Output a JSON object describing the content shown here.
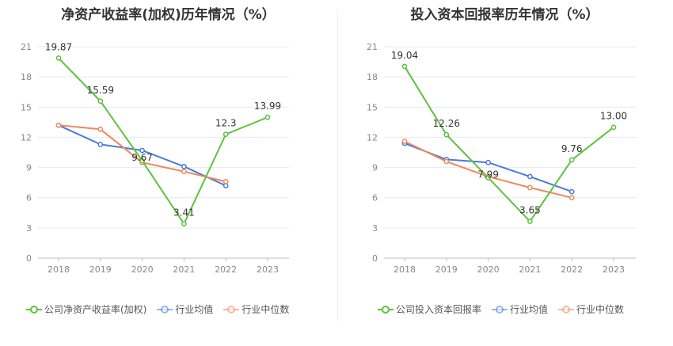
{
  "chart_data": [
    {
      "type": "line",
      "title": "净资产收益率(加权)历年情况（%）",
      "categories": [
        "2018",
        "2019",
        "2020",
        "2021",
        "2022",
        "2023"
      ],
      "yticks": [
        "0",
        "3",
        "6",
        "9",
        "12",
        "15",
        "18",
        "21"
      ],
      "ylim": [
        0,
        21
      ],
      "grid": true,
      "legend_position": "bottom-left",
      "series": [
        {
          "name": "公司净资产收益率(加权)",
          "color": "#5cc33c",
          "values": [
            19.87,
            15.59,
            9.67,
            3.41,
            12.3,
            13.99
          ],
          "labels": [
            "19.87",
            "15.59",
            "9.67",
            "3.41",
            "12.3",
            "13.99"
          ]
        },
        {
          "name": "行业均值",
          "color": "#4a7bd8",
          "values": [
            13.2,
            11.3,
            10.7,
            9.1,
            7.2,
            null
          ]
        },
        {
          "name": "行业中位数",
          "color": "#f0885e",
          "values": [
            13.2,
            12.8,
            9.5,
            8.6,
            7.6,
            null
          ]
        }
      ]
    },
    {
      "type": "line",
      "title": "投入资本回报率历年情况（%）",
      "categories": [
        "2018",
        "2019",
        "2020",
        "2021",
        "2022",
        "2023"
      ],
      "yticks": [
        "0",
        "3",
        "6",
        "9",
        "12",
        "15",
        "18",
        "21"
      ],
      "ylim": [
        0,
        21
      ],
      "grid": true,
      "legend_position": "bottom-left",
      "series": [
        {
          "name": "公司投入资本回报率",
          "color": "#5cc33c",
          "values": [
            19.04,
            12.26,
            7.99,
            3.65,
            9.76,
            13.0
          ],
          "labels": [
            "19.04",
            "12.26",
            "7.99",
            "3.65",
            "9.76",
            "13.00"
          ]
        },
        {
          "name": "行业均值",
          "color": "#4a7bd8",
          "values": [
            11.4,
            9.8,
            9.5,
            8.1,
            6.6,
            null
          ]
        },
        {
          "name": "行业中位数",
          "color": "#f0885e",
          "values": [
            11.6,
            9.6,
            8.1,
            7.0,
            6.0,
            null
          ]
        }
      ]
    }
  ]
}
